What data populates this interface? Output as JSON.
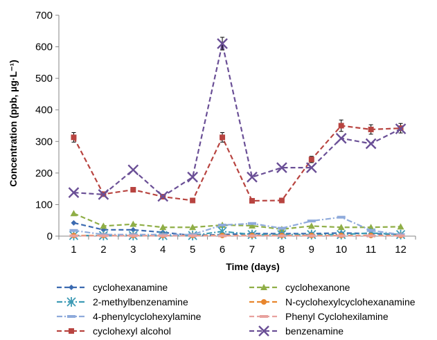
{
  "chart_data": {
    "type": "line",
    "xlabel": "Time (days)",
    "ylabel": "Concentration (ppb, µg·L⁻¹)",
    "x": [
      1,
      2,
      3,
      4,
      5,
      6,
      7,
      8,
      9,
      10,
      11,
      12
    ],
    "ylim": [
      0,
      700
    ],
    "yticks": [
      0,
      100,
      200,
      300,
      400,
      500,
      600,
      700
    ],
    "grid": false,
    "legend_position": "bottom",
    "series": [
      {
        "name": "cyclohexanamine",
        "color": "#3b6ab0",
        "dash": "dash",
        "marker": "diamond",
        "values": [
          42,
          20,
          20,
          12,
          2,
          5,
          8,
          8,
          8,
          10,
          8,
          5
        ]
      },
      {
        "name": "cyclohexanone",
        "color": "#8fae46",
        "dash": "dash",
        "marker": "triangle",
        "values": [
          72,
          32,
          38,
          28,
          28,
          35,
          33,
          22,
          32,
          28,
          28,
          30
        ]
      },
      {
        "name": "2-methylbenzenamine",
        "color": "#3e9bb5",
        "dash": "dashdot",
        "marker": "star",
        "values": [
          2,
          2,
          2,
          2,
          2,
          15,
          5,
          5,
          5,
          5,
          10,
          5
        ]
      },
      {
        "name": "N-cyclohexylcyclohexanamine",
        "color": "#e8862e",
        "dash": "dash",
        "marker": "circle",
        "values": [
          2,
          2,
          2,
          2,
          2,
          2,
          2,
          2,
          2,
          2,
          2,
          2
        ]
      },
      {
        "name": "4-phenylcyclohexylamine",
        "color": "#8eaadb",
        "dash": "dashdot",
        "marker": "dash",
        "values": [
          18,
          5,
          5,
          5,
          5,
          35,
          40,
          25,
          48,
          60,
          18,
          5
        ]
      },
      {
        "name": "Phenyl Cyclohexilamine",
        "color": "#e8a19e",
        "dash": "dash",
        "marker": "dash",
        "values": [
          1,
          1,
          1,
          1,
          1,
          1,
          1,
          1,
          1,
          1,
          1,
          1
        ]
      },
      {
        "name": "cyclohexyl alcohol",
        "color": "#b84440",
        "dash": "dash",
        "marker": "square",
        "values": [
          313,
          133,
          147,
          125,
          113,
          313,
          112,
          113,
          243,
          350,
          338,
          342
        ],
        "err": [
          15,
          0,
          0,
          0,
          0,
          15,
          0,
          0,
          10,
          18,
          15,
          15
        ]
      },
      {
        "name": "benzenamine",
        "color": "#6a4f96",
        "dash": "dash",
        "marker": "x",
        "values": [
          138,
          132,
          210,
          126,
          187,
          610,
          187,
          217,
          217,
          310,
          293,
          340
        ],
        "err": [
          0,
          0,
          0,
          0,
          0,
          20,
          0,
          0,
          0,
          0,
          0,
          0
        ]
      }
    ]
  }
}
